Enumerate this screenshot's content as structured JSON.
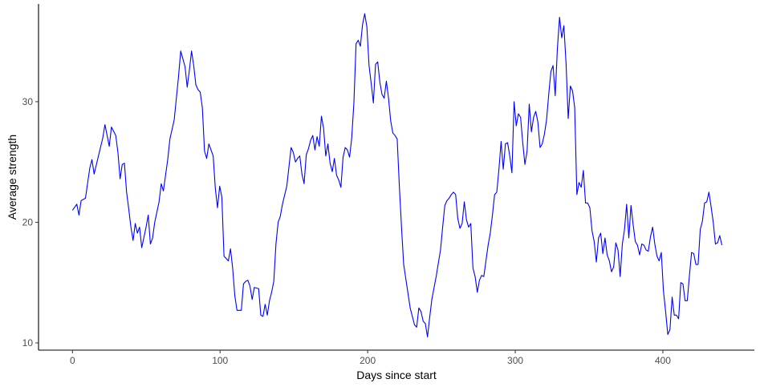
{
  "chart_data": {
    "type": "line",
    "title": "",
    "xlabel": "Days since start",
    "ylabel": "Average strength",
    "xlim": [
      -23,
      462
    ],
    "ylim": [
      9.4,
      38.1
    ],
    "x_ticks": [
      0,
      100,
      200,
      300,
      400
    ],
    "y_ticks": [
      10,
      20,
      30
    ],
    "grid": false,
    "line_color": "#0000ff",
    "axis_color": "#000000",
    "series": [
      {
        "name": "",
        "points": [
          [
            0,
            21.0
          ],
          [
            2,
            21.5
          ],
          [
            3,
            20.6
          ],
          [
            4,
            21.8
          ],
          [
            6,
            22.0
          ],
          [
            8,
            24.5
          ],
          [
            9,
            25.2
          ],
          [
            10,
            24.0
          ],
          [
            12,
            25.5
          ],
          [
            14,
            27.0
          ],
          [
            15,
            28.1
          ],
          [
            17,
            26.3
          ],
          [
            18,
            27.9
          ],
          [
            20,
            27.2
          ],
          [
            21,
            25.8
          ],
          [
            22,
            23.6
          ],
          [
            23,
            24.8
          ],
          [
            24,
            24.9
          ],
          [
            25,
            22.5
          ],
          [
            26,
            21.1
          ],
          [
            27,
            19.6
          ],
          [
            28,
            18.5
          ],
          [
            29,
            19.9
          ],
          [
            30,
            19.1
          ],
          [
            31,
            19.6
          ],
          [
            32,
            17.9
          ],
          [
            34,
            19.6
          ],
          [
            35,
            20.6
          ],
          [
            36,
            18.2
          ],
          [
            37,
            18.7
          ],
          [
            38,
            20.0
          ],
          [
            40,
            21.7
          ],
          [
            41,
            23.2
          ],
          [
            42,
            22.6
          ],
          [
            44,
            25.2
          ],
          [
            45,
            26.9
          ],
          [
            47,
            28.5
          ],
          [
            49,
            32.1
          ],
          [
            50,
            34.2
          ],
          [
            52,
            32.9
          ],
          [
            53,
            31.2
          ],
          [
            54,
            32.6
          ],
          [
            55,
            34.2
          ],
          [
            56,
            33.0
          ],
          [
            57,
            31.4
          ],
          [
            58,
            31.0
          ],
          [
            59,
            30.8
          ],
          [
            60,
            29.5
          ],
          [
            61,
            25.9
          ],
          [
            62,
            25.3
          ],
          [
            63,
            26.5
          ],
          [
            65,
            25.5
          ],
          [
            66,
            22.8
          ],
          [
            67,
            21.2
          ],
          [
            68,
            23.0
          ],
          [
            69,
            22.1
          ],
          [
            70,
            17.2
          ],
          [
            71,
            17.0
          ],
          [
            72,
            16.8
          ],
          [
            73,
            17.8
          ],
          [
            74,
            16.2
          ],
          [
            75,
            13.9
          ],
          [
            76,
            12.7
          ],
          [
            78,
            12.7
          ],
          [
            79,
            14.9
          ],
          [
            80,
            15.1
          ],
          [
            81,
            15.2
          ],
          [
            82,
            14.7
          ],
          [
            83,
            13.6
          ],
          [
            84,
            14.6
          ],
          [
            86,
            14.5
          ],
          [
            87,
            12.3
          ],
          [
            88,
            12.2
          ],
          [
            89,
            13.2
          ],
          [
            90,
            12.3
          ],
          [
            91,
            13.5
          ],
          [
            92,
            14.2
          ],
          [
            93,
            15.1
          ],
          [
            94,
            18.2
          ],
          [
            95,
            20.0
          ],
          [
            96,
            20.5
          ],
          [
            97,
            21.5
          ],
          [
            99,
            23.0
          ],
          [
            100,
            24.6
          ],
          [
            101,
            26.2
          ],
          [
            102,
            25.8
          ],
          [
            103,
            25.0
          ],
          [
            104,
            25.3
          ],
          [
            105,
            25.5
          ],
          [
            106,
            24.0
          ],
          [
            107,
            23.2
          ],
          [
            108,
            25.6
          ],
          [
            109,
            26.1
          ],
          [
            110,
            26.8
          ],
          [
            111,
            27.2
          ],
          [
            112,
            26.0
          ],
          [
            113,
            27.1
          ],
          [
            114,
            26.3
          ],
          [
            115,
            28.8
          ],
          [
            116,
            27.8
          ],
          [
            117,
            25.5
          ],
          [
            118,
            26.5
          ],
          [
            119,
            24.9
          ],
          [
            120,
            24.2
          ],
          [
            121,
            25.3
          ],
          [
            122,
            23.9
          ],
          [
            123,
            23.5
          ],
          [
            124,
            22.9
          ],
          [
            125,
            25.4
          ],
          [
            126,
            26.2
          ],
          [
            127,
            26.0
          ],
          [
            128,
            25.4
          ],
          [
            129,
            27.0
          ],
          [
            130,
            29.9
          ],
          [
            131,
            34.8
          ],
          [
            132,
            35.1
          ],
          [
            133,
            34.6
          ],
          [
            134,
            36.4
          ],
          [
            135,
            37.3
          ],
          [
            136,
            36.2
          ],
          [
            137,
            33.0
          ],
          [
            138,
            31.5
          ],
          [
            139,
            29.9
          ],
          [
            140,
            33.1
          ],
          [
            141,
            33.3
          ],
          [
            142,
            31.6
          ],
          [
            143,
            30.6
          ],
          [
            144,
            30.3
          ],
          [
            145,
            31.7
          ],
          [
            146,
            30.3
          ],
          [
            147,
            28.4
          ],
          [
            148,
            27.4
          ],
          [
            149,
            27.2
          ],
          [
            150,
            26.9
          ],
          [
            151,
            23.0
          ],
          [
            152,
            19.6
          ],
          [
            153,
            16.5
          ],
          [
            154,
            15.3
          ],
          [
            155,
            14.1
          ],
          [
            156,
            12.9
          ],
          [
            157,
            12.2
          ],
          [
            158,
            11.5
          ],
          [
            159,
            11.3
          ],
          [
            160,
            12.9
          ],
          [
            161,
            12.6
          ],
          [
            162,
            11.8
          ],
          [
            163,
            11.6
          ],
          [
            164,
            10.5
          ],
          [
            165,
            12.1
          ],
          [
            166,
            13.6
          ],
          [
            168,
            15.5
          ],
          [
            170,
            17.7
          ],
          [
            171,
            19.6
          ],
          [
            172,
            21.4
          ],
          [
            173,
            21.8
          ],
          [
            174,
            22.0
          ],
          [
            175,
            22.3
          ],
          [
            176,
            22.5
          ],
          [
            177,
            22.3
          ],
          [
            178,
            20.3
          ],
          [
            179,
            19.5
          ],
          [
            180,
            19.9
          ],
          [
            181,
            21.7
          ],
          [
            182,
            20.2
          ],
          [
            183,
            19.6
          ],
          [
            184,
            19.9
          ],
          [
            185,
            16.2
          ],
          [
            186,
            15.5
          ],
          [
            187,
            14.2
          ],
          [
            188,
            15.2
          ],
          [
            189,
            15.6
          ],
          [
            190,
            15.5
          ],
          [
            191,
            16.8
          ],
          [
            192,
            18.1
          ],
          [
            193,
            19.1
          ],
          [
            194,
            20.6
          ],
          [
            195,
            22.3
          ],
          [
            196,
            22.5
          ],
          [
            197,
            24.4
          ],
          [
            198,
            26.7
          ],
          [
            199,
            24.4
          ],
          [
            200,
            26.5
          ],
          [
            201,
            26.6
          ],
          [
            202,
            25.5
          ],
          [
            203,
            24.1
          ],
          [
            204,
            30.0
          ],
          [
            205,
            28.0
          ],
          [
            206,
            29.0
          ],
          [
            207,
            28.7
          ],
          [
            208,
            26.6
          ],
          [
            209,
            24.8
          ],
          [
            210,
            25.9
          ],
          [
            211,
            29.8
          ],
          [
            212,
            27.5
          ],
          [
            213,
            28.7
          ],
          [
            214,
            29.2
          ],
          [
            215,
            28.3
          ],
          [
            216,
            26.2
          ],
          [
            217,
            26.5
          ],
          [
            218,
            27.3
          ],
          [
            219,
            28.5
          ],
          [
            220,
            30.6
          ],
          [
            221,
            32.5
          ],
          [
            222,
            33.0
          ],
          [
            223,
            30.5
          ],
          [
            224,
            34.4
          ],
          [
            225,
            37.0
          ],
          [
            226,
            35.3
          ],
          [
            227,
            36.3
          ],
          [
            228,
            33.2
          ],
          [
            229,
            28.6
          ],
          [
            230,
            31.3
          ],
          [
            231,
            30.9
          ],
          [
            232,
            29.5
          ],
          [
            233,
            22.3
          ],
          [
            234,
            23.3
          ],
          [
            235,
            22.9
          ],
          [
            236,
            24.3
          ],
          [
            237,
            21.6
          ],
          [
            238,
            21.6
          ],
          [
            239,
            21.2
          ],
          [
            240,
            19.3
          ],
          [
            241,
            18.4
          ],
          [
            242,
            16.7
          ],
          [
            243,
            18.7
          ],
          [
            244,
            19.1
          ],
          [
            245,
            17.4
          ],
          [
            246,
            18.7
          ],
          [
            247,
            17.3
          ],
          [
            248,
            16.8
          ],
          [
            249,
            15.9
          ],
          [
            250,
            16.3
          ],
          [
            251,
            18.3
          ],
          [
            252,
            17.7
          ],
          [
            253,
            15.5
          ],
          [
            254,
            18.2
          ],
          [
            255,
            19.4
          ],
          [
            256,
            21.5
          ],
          [
            257,
            18.7
          ],
          [
            258,
            21.4
          ],
          [
            259,
            19.8
          ],
          [
            260,
            18.4
          ],
          [
            261,
            18.1
          ],
          [
            262,
            17.3
          ],
          [
            263,
            18.2
          ],
          [
            264,
            18.1
          ],
          [
            265,
            17.7
          ],
          [
            266,
            17.6
          ],
          [
            267,
            18.8
          ],
          [
            268,
            19.6
          ],
          [
            269,
            18.2
          ],
          [
            270,
            17.2
          ],
          [
            271,
            16.8
          ],
          [
            272,
            17.5
          ],
          [
            273,
            14.3
          ],
          [
            274,
            12.6
          ],
          [
            275,
            10.7
          ],
          [
            276,
            11.1
          ],
          [
            277,
            13.8
          ],
          [
            278,
            12.3
          ],
          [
            279,
            12.3
          ],
          [
            280,
            12.0
          ],
          [
            281,
            15.0
          ],
          [
            282,
            14.9
          ],
          [
            283,
            13.5
          ],
          [
            284,
            13.5
          ],
          [
            285,
            15.6
          ],
          [
            286,
            17.5
          ],
          [
            287,
            17.4
          ],
          [
            288,
            16.5
          ],
          [
            289,
            16.5
          ],
          [
            290,
            19.4
          ],
          [
            291,
            20.1
          ],
          [
            292,
            21.6
          ],
          [
            293,
            21.7
          ],
          [
            294,
            22.5
          ],
          [
            295,
            21.3
          ],
          [
            296,
            20.0
          ],
          [
            297,
            18.2
          ],
          [
            298,
            18.3
          ],
          [
            299,
            18.9
          ],
          [
            300,
            18.1
          ]
        ]
      }
    ]
  }
}
